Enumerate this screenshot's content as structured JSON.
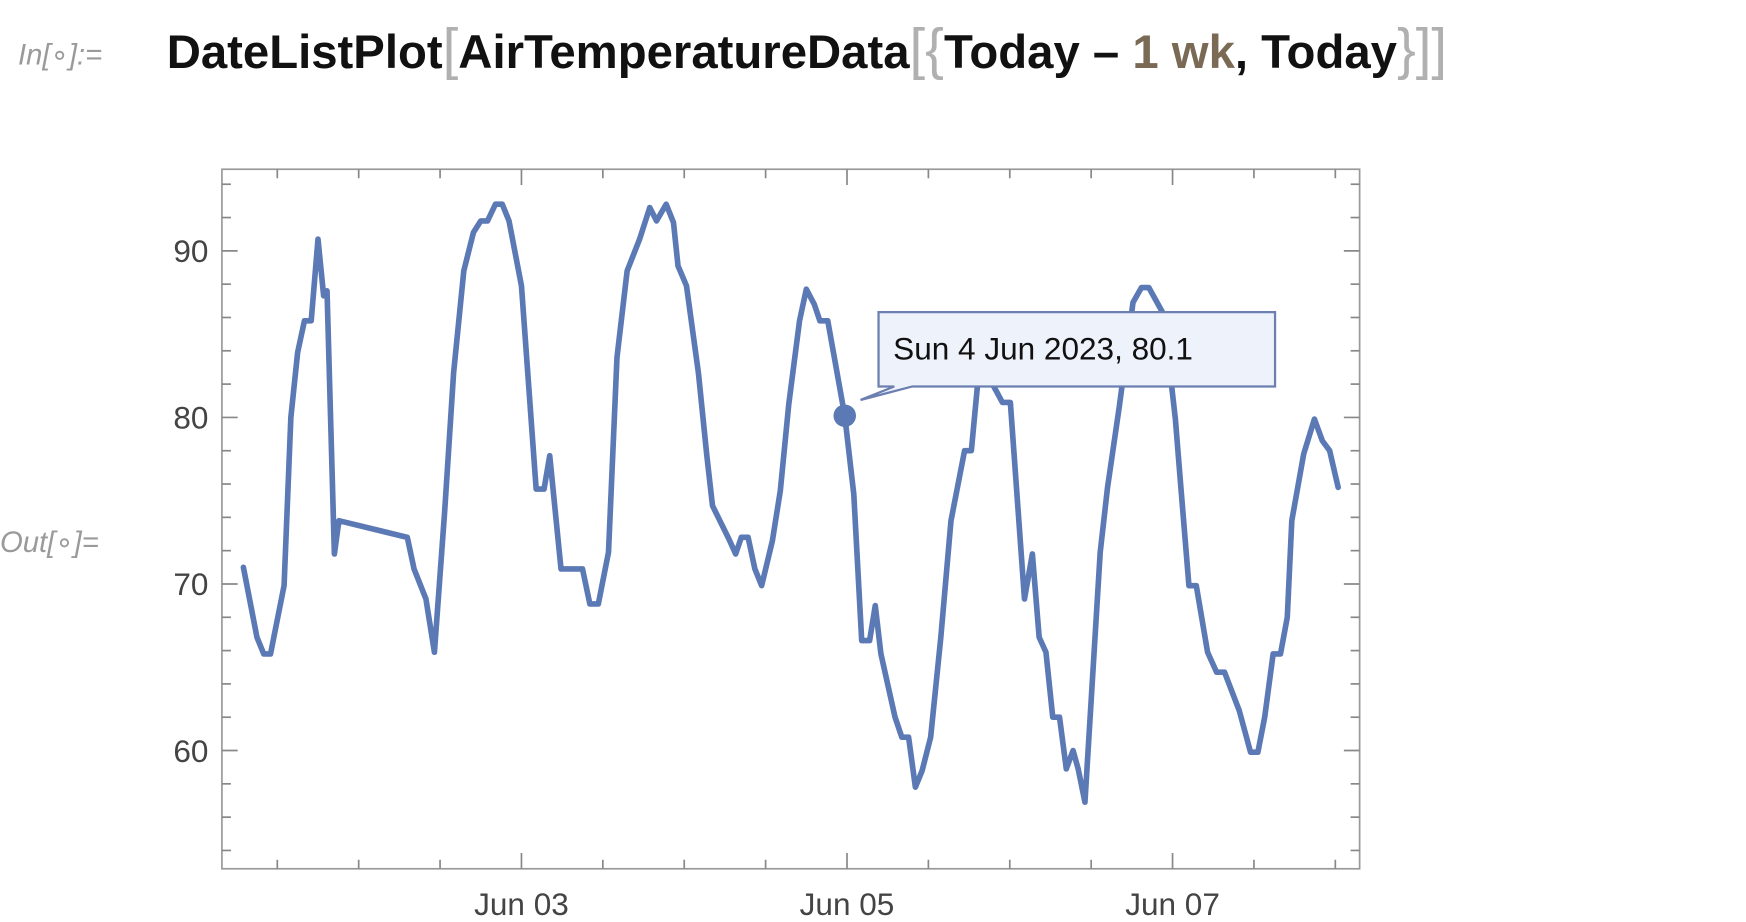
{
  "input": {
    "prompt": "In[∘]:=",
    "tokens": [
      "DateListPlot",
      "[",
      "AirTemperatureData",
      "[",
      "{",
      "Today – ",
      "1",
      " wk",
      ", Today",
      "}",
      "]",
      "]"
    ]
  },
  "output_prompt": "Out[∘]=",
  "chart_data": {
    "type": "line",
    "color": "#5b79b4",
    "tooltip": "Sun 4 Jun 2023, 80.1",
    "x": [
      "2023-06-01T07:00",
      "2023-06-01T09:00",
      "2023-06-01T10:00",
      "2023-06-01T11:00",
      "2023-06-01T13:00",
      "2023-06-01T14:00",
      "2023-06-01T15:00",
      "2023-06-01T16:00",
      "2023-06-01T17:00",
      "2023-06-01T18:00",
      "2023-06-01T18:50",
      "2023-06-01T19:20",
      "2023-06-01T20:25",
      "2023-06-01T21:05",
      "2023-06-02T07:10",
      "2023-06-02T08:10",
      "2023-06-02T09:55",
      "2023-06-02T11:10",
      "2023-06-02T12:40",
      "2023-06-02T14:00",
      "2023-06-02T15:30",
      "2023-06-02T16:55",
      "2023-06-02T18:00",
      "2023-06-02T19:00",
      "2023-06-02T20:10",
      "2023-06-02T21:10",
      "2023-06-02T22:10",
      "2023-06-03T00:00",
      "2023-06-03T02:10",
      "2023-06-03T03:20",
      "2023-06-03T04:10",
      "2023-06-03T05:50",
      "2023-06-03T09:00",
      "2023-06-03T10:05",
      "2023-06-03T11:20",
      "2023-06-03T12:50",
      "2023-06-03T14:05",
      "2023-06-03T15:35",
      "2023-06-03T17:25",
      "2023-06-03T18:55",
      "2023-06-03T19:55",
      "2023-06-03T21:20",
      "2023-06-03T22:25",
      "2023-06-03T23:05",
      "2023-06-04T00:20",
      "2023-06-04T02:05",
      "2023-06-04T03:20",
      "2023-06-04T04:10",
      "2023-06-04T06:35",
      "2023-06-04T07:35",
      "2023-06-04T08:25",
      "2023-06-04T09:25",
      "2023-06-04T10:25",
      "2023-06-04T11:25",
      "2023-06-04T13:00",
      "2023-06-04T14:10",
      "2023-06-04T15:25",
      "2023-06-04T17:00",
      "2023-06-04T18:00",
      "2023-06-04T19:10",
      "2023-06-04T20:00",
      "2023-06-04T21:10",
      "2023-06-04T23:40",
      "2023-06-05T01:00",
      "2023-06-05T02:10",
      "2023-06-05T03:20",
      "2023-06-05T04:10",
      "2023-06-05T05:00",
      "2023-06-05T07:05",
      "2023-06-05T08:05",
      "2023-06-05T09:05",
      "2023-06-05T10:05",
      "2023-06-05T11:05",
      "2023-06-05T12:20",
      "2023-06-05T13:50",
      "2023-06-05T15:20",
      "2023-06-05T17:20",
      "2023-06-05T18:20",
      "2023-06-05T19:25",
      "2023-06-05T20:35",
      "2023-06-05T21:35",
      "2023-06-05T22:55",
      "2023-06-06T00:05",
      "2023-06-06T02:10",
      "2023-06-06T03:20",
      "2023-06-06T04:20",
      "2023-06-06T05:20",
      "2023-06-06T06:20",
      "2023-06-06T07:20",
      "2023-06-06T08:20",
      "2023-06-06T09:20",
      "2023-06-06T10:05",
      "2023-06-06T11:05",
      "2023-06-06T13:20",
      "2023-06-06T14:25",
      "2023-06-06T16:10",
      "2023-06-06T18:10",
      "2023-06-06T19:25",
      "2023-06-06T20:30",
      "2023-06-06T22:40",
      "2023-06-07T00:25",
      "2023-06-07T01:10",
      "2023-06-07T02:25",
      "2023-06-07T03:30",
      "2023-06-07T05:10",
      "2023-06-07T06:30",
      "2023-06-07T07:40",
      "2023-06-07T09:50",
      "2023-06-07T11:30",
      "2023-06-07T12:35",
      "2023-06-07T13:35",
      "2023-06-07T14:50",
      "2023-06-07T15:55",
      "2023-06-07T16:55",
      "2023-06-07T17:35",
      "2023-06-07T19:20",
      "2023-06-07T20:55",
      "2023-06-07T22:05",
      "2023-06-07T23:10",
      "2023-06-08T00:25"
    ],
    "values": [
      71.0,
      66.8,
      65.8,
      65.8,
      69.9,
      80,
      83.9,
      85.8,
      85.8,
      90.7,
      87.3,
      87.6,
      71.8,
      73.8,
      72.8,
      70.9,
      69.1,
      65.9,
      74.3,
      82.7,
      88.8,
      91.1,
      91.8,
      91.8,
      92.8,
      92.8,
      91.8,
      87.9,
      75.7,
      75.7,
      77.7,
      70.9,
      70.9,
      68.8,
      68.8,
      71.9,
      83.6,
      88.8,
      90.7,
      92.6,
      91.8,
      92.8,
      91.7,
      89.1,
      87.9,
      82.7,
      77.7,
      74.7,
      72.7,
      71.8,
      72.8,
      72.8,
      70.9,
      69.9,
      72.6,
      75.6,
      80.8,
      85.8,
      87.7,
      86.8,
      85.8,
      85.8,
      80.1,
      75.4,
      66.6,
      66.6,
      68.7,
      65.8,
      62.0,
      60.8,
      60.8,
      57.8,
      58.8,
      60.8,
      66.8,
      73.8,
      78.0,
      78.0,
      82.7,
      84.7,
      81.9,
      80.9,
      80.9,
      69.1,
      71.8,
      66.8,
      65.9,
      62.0,
      62.0,
      58.9,
      60.0,
      58.9,
      56.9,
      71.9,
      75.8,
      80.7,
      86.9,
      87.8,
      87.8,
      86.2,
      79.9,
      76.1,
      69.9,
      69.9,
      65.9,
      64.7,
      64.7,
      62.4,
      59.9,
      59.9,
      62.0,
      65.8,
      65.8,
      68.0,
      73.8,
      77.8,
      79.9,
      78.6,
      78.0,
      75.8
    ],
    "xlim": [
      "2023-06-01T03:50",
      "2023-06-08T03:35"
    ],
    "xticks": [
      {
        "value": "2023-06-03",
        "label": "Jun 03"
      },
      {
        "value": "2023-06-05",
        "label": "Jun 05"
      },
      {
        "value": "2023-06-07",
        "label": "Jun 07"
      }
    ],
    "xminorticks": [
      "2023-06-01T12:00",
      "2023-06-02T00:00",
      "2023-06-02T12:00",
      "2023-06-03T12:00",
      "2023-06-04T00:00",
      "2023-06-04T12:00",
      "2023-06-05T12:00",
      "2023-06-06T00:00",
      "2023-06-06T12:00",
      "2023-06-07T12:00",
      "2023-06-08T00:00"
    ],
    "ylim": [
      52.9,
      94.9
    ],
    "yticks": [
      60,
      70,
      80,
      90
    ],
    "yminorticks": [
      54,
      56,
      58,
      62,
      64,
      66,
      68,
      72,
      74,
      76,
      78,
      82,
      84,
      86,
      88,
      92,
      94
    ]
  }
}
